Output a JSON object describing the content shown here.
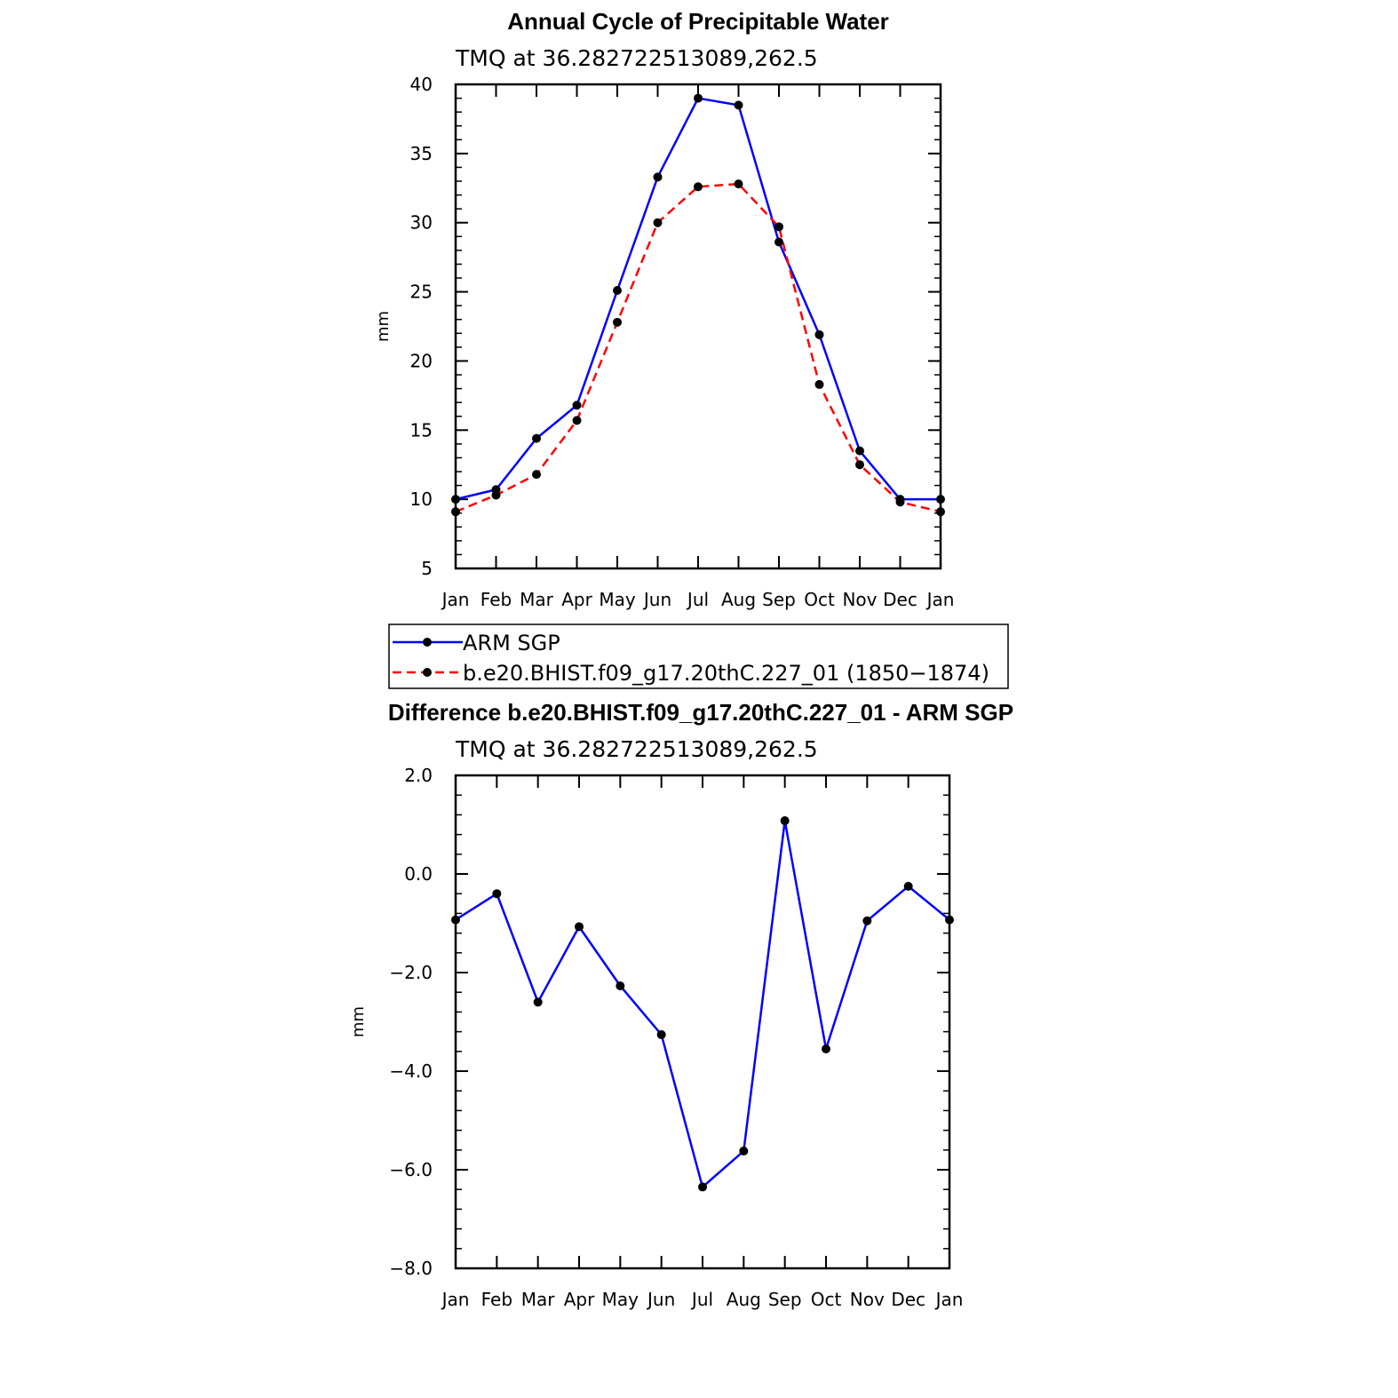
{
  "chart_data": [
    {
      "type": "line",
      "title": "Annual Cycle of Precipitable Water",
      "subtitle": "TMQ  at  36.282722513089,262.5",
      "ylabel": "mm",
      "xlabel": "",
      "ylim": [
        5,
        40
      ],
      "yticks": [
        "5",
        "10",
        "15",
        "20",
        "25",
        "30",
        "35",
        "40"
      ],
      "yticks_values": [
        5,
        10,
        15,
        20,
        25,
        30,
        35,
        40
      ],
      "categories": [
        "Jan",
        "Feb",
        "Mar",
        "Apr",
        "May",
        "Jun",
        "Jul",
        "Aug",
        "Sep",
        "Oct",
        "Nov",
        "Dec",
        "Jan"
      ],
      "series": [
        {
          "name": "ARM  SGP",
          "color": "#0000ff",
          "dash": "solid",
          "values": [
            10.0,
            10.7,
            14.4,
            16.8,
            25.1,
            33.3,
            39.0,
            38.5,
            28.6,
            21.9,
            13.5,
            10.0,
            10.0
          ]
        },
        {
          "name": "b.e20.BHIST.f09_g17.20thC.227_01  (1850−1874)",
          "color": "#ff0000",
          "dash": "dashed",
          "values": [
            9.1,
            10.3,
            11.8,
            15.7,
            22.8,
            30.0,
            32.6,
            32.8,
            29.7,
            18.3,
            12.5,
            9.8,
            9.1
          ]
        }
      ],
      "legend_position": "below"
    },
    {
      "type": "line",
      "title": "Difference b.e20.BHIST.f09_g17.20thC.227_01 - ARM SGP",
      "subtitle": "TMQ  at  36.282722513089,262.5",
      "ylabel": "mm",
      "xlabel": "",
      "ylim": [
        -8,
        2
      ],
      "yticks": [
        "2.0",
        "0.0",
        "−2.0",
        "−4.0",
        "−6.0",
        "−8.0"
      ],
      "yticks_values": [
        2,
        0,
        -2,
        -4,
        -6,
        -8
      ],
      "categories": [
        "Jan",
        "Feb",
        "Mar",
        "Apr",
        "May",
        "Jun",
        "Jul",
        "Aug",
        "Sep",
        "Oct",
        "Nov",
        "Dec",
        "Jan"
      ],
      "series": [
        {
          "color": "#0000ff",
          "dash": "solid",
          "values": [
            -0.93,
            -0.4,
            -2.6,
            -1.07,
            -2.27,
            -3.26,
            -6.35,
            -5.62,
            1.08,
            -3.55,
            -0.95,
            -0.25,
            -0.93
          ]
        }
      ]
    }
  ]
}
